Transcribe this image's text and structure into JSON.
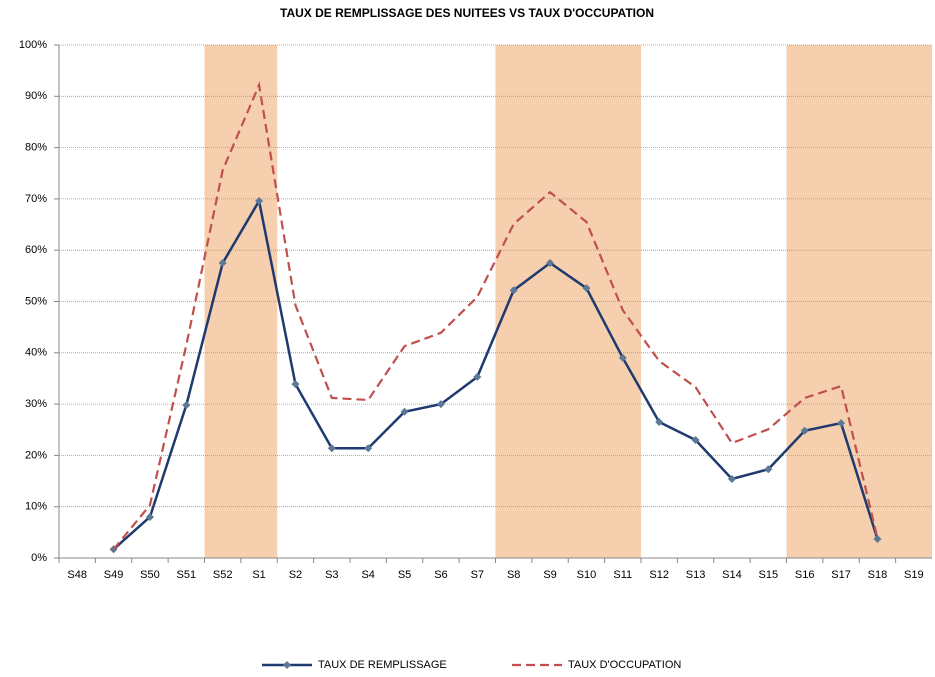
{
  "chart_data": {
    "type": "line",
    "title": "TAUX DE REMPLISSAGE DES NUITEES VS TAUX D'OCCUPATION",
    "categories": [
      "S48",
      "S49",
      "S50",
      "S51",
      "S52",
      "S1",
      "S2",
      "S3",
      "S4",
      "S5",
      "S6",
      "S7",
      "S8",
      "S9",
      "S10",
      "S11",
      "S12",
      "S13",
      "S14",
      "S15",
      "S16",
      "S17",
      "S18",
      "S19"
    ],
    "series": [
      {
        "name": "TAUX DE REMPLISSAGE",
        "color": "#1f3a6e",
        "marker_color": "#5b7896",
        "dash": false,
        "values": [
          null,
          1.7,
          8,
          29.8,
          57.5,
          69.6,
          33.9,
          21.4,
          21.4,
          28.5,
          30,
          35.3,
          52.2,
          57.5,
          52.6,
          39,
          26.5,
          23,
          15.4,
          17.3,
          24.8,
          26.3,
          3.7,
          null
        ]
      },
      {
        "name": "TAUX D'OCCUPATION",
        "color": "#c0504d",
        "dash": true,
        "values": [
          null,
          1.7,
          10.3,
          41.5,
          75.6,
          92.2,
          49.3,
          31.2,
          30.8,
          41.3,
          43.9,
          50.9,
          65.1,
          71.3,
          65.5,
          48.3,
          38.4,
          33.3,
          22.4,
          25.1,
          31.2,
          33.5,
          3.9,
          null
        ]
      }
    ],
    "shaded_ranges": [
      [
        "S52",
        "S1"
      ],
      [
        "S8",
        "S11"
      ],
      [
        "S16",
        "S19"
      ]
    ],
    "shade_color": "#f5cfae",
    "ylim": [
      0,
      100
    ],
    "yticks": [
      {
        "value": 0,
        "label": "0%"
      },
      {
        "value": 10,
        "label": "10%"
      },
      {
        "value": 20,
        "label": "20%"
      },
      {
        "value": 30,
        "label": "30%"
      },
      {
        "value": 40,
        "label": "40%"
      },
      {
        "value": 50,
        "label": "50%"
      },
      {
        "value": 60,
        "label": "60%"
      },
      {
        "value": 70,
        "label": "70%"
      },
      {
        "value": 80,
        "label": "80%"
      },
      {
        "value": 90,
        "label": "90%"
      },
      {
        "value": 100,
        "label": "100%"
      }
    ],
    "grid": true,
    "legend": "bottom"
  }
}
